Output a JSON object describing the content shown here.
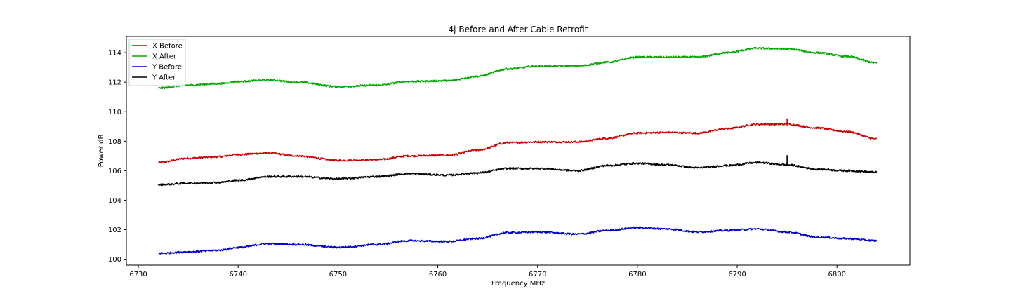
{
  "chart_data": {
    "type": "line",
    "title": "4j Before and After Cable Retrofit",
    "xlabel": "Frequency MHz",
    "ylabel": "Power dB",
    "xlim": [
      6728.8,
      6807.3
    ],
    "ylim": [
      99.6,
      115.1
    ],
    "xticks": [
      6730,
      6740,
      6750,
      6760,
      6770,
      6780,
      6790,
      6800
    ],
    "yticks": [
      100,
      102,
      104,
      106,
      108,
      110,
      112,
      114
    ],
    "grid": false,
    "legend_position": "top-left",
    "series": [
      {
        "name": "X Before",
        "color": "#cc0000",
        "x": [
          6732,
          6735,
          6738,
          6740,
          6743,
          6746,
          6750,
          6754,
          6757,
          6761,
          6764,
          6767,
          6770,
          6774,
          6777,
          6780,
          6783,
          6786,
          6789,
          6792,
          6795,
          6798,
          6801,
          6804
        ],
        "y": [
          106.55,
          106.85,
          106.95,
          107.1,
          107.2,
          107.0,
          106.7,
          106.75,
          107.0,
          107.05,
          107.4,
          107.9,
          107.95,
          107.95,
          108.2,
          108.55,
          108.6,
          108.55,
          108.85,
          109.15,
          109.15,
          108.9,
          108.65,
          108.15
        ],
        "spike": {
          "x": 6795,
          "y_top": 109.55,
          "y_bottom": 109.1
        }
      },
      {
        "name": "X After",
        "color": "#00aa00",
        "x": [
          6732,
          6735,
          6738,
          6740,
          6743,
          6746,
          6750,
          6754,
          6757,
          6761,
          6764,
          6767,
          6770,
          6774,
          6777,
          6780,
          6783,
          6786,
          6789,
          6792,
          6795,
          6798,
          6801,
          6804
        ],
        "y": [
          111.6,
          111.8,
          111.9,
          112.05,
          112.15,
          112.0,
          111.7,
          111.8,
          112.05,
          112.1,
          112.4,
          112.9,
          113.1,
          113.1,
          113.35,
          113.7,
          113.7,
          113.7,
          114.0,
          114.3,
          114.25,
          114.0,
          113.75,
          113.3
        ]
      },
      {
        "name": "Y Before",
        "color": "#0000cc",
        "x": [
          6732,
          6735,
          6738,
          6740,
          6743,
          6746,
          6750,
          6754,
          6757,
          6761,
          6764,
          6767,
          6770,
          6774,
          6777,
          6780,
          6783,
          6786,
          6789,
          6792,
          6795,
          6798,
          6801,
          6804
        ],
        "y": [
          100.4,
          100.5,
          100.6,
          100.8,
          101.05,
          101.0,
          100.8,
          101.0,
          101.25,
          101.2,
          101.4,
          101.8,
          101.85,
          101.7,
          101.95,
          102.15,
          102.05,
          101.85,
          101.95,
          102.05,
          101.85,
          101.5,
          101.4,
          101.25
        ]
      },
      {
        "name": "Y After",
        "color": "#000000",
        "x": [
          6732,
          6735,
          6738,
          6740,
          6743,
          6746,
          6750,
          6754,
          6757,
          6761,
          6764,
          6767,
          6770,
          6774,
          6777,
          6780,
          6783,
          6786,
          6789,
          6792,
          6795,
          6798,
          6801,
          6804
        ],
        "y": [
          105.05,
          105.15,
          105.2,
          105.35,
          105.6,
          105.6,
          105.45,
          105.6,
          105.8,
          105.7,
          105.85,
          106.15,
          106.15,
          106.0,
          106.35,
          106.5,
          106.4,
          106.2,
          106.35,
          106.55,
          106.4,
          106.1,
          106.0,
          105.9
        ],
        "spike": {
          "x": 6795,
          "y_top": 107.05,
          "y_bottom": 106.35
        }
      }
    ]
  }
}
